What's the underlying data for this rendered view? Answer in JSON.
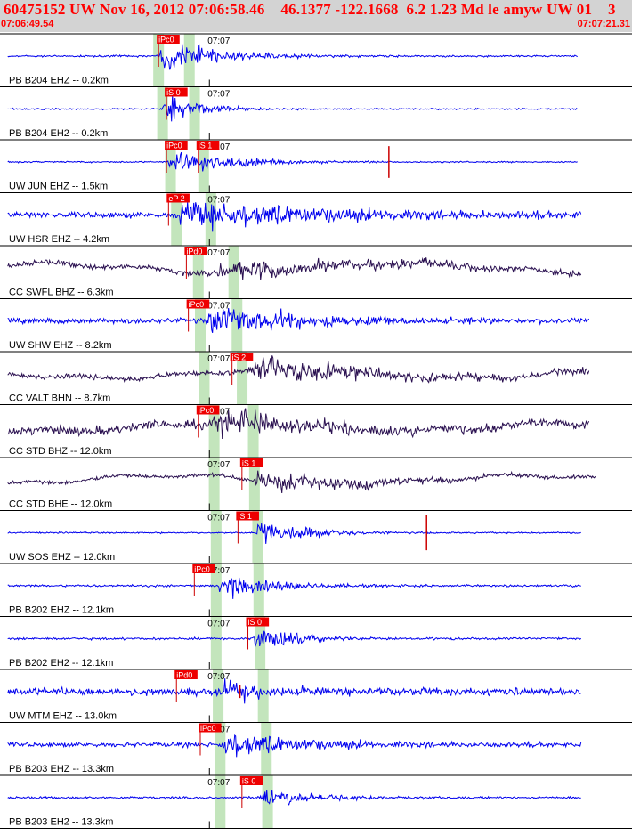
{
  "header": {
    "title": "60475152 UW Nov 16, 2012 07:06:58.46    46.1377 -122.1668  6.2 1.23 Md le amyw UW 01    3",
    "start_time": "07:06:49.54",
    "end_time": "07:07:21.31"
  },
  "colors": {
    "background": "#ffffff",
    "header_band": "#d3d3d3",
    "header_text": "#ff0000",
    "pick_box": "#ee0000",
    "pick_text": "#ffffff",
    "window_band": "#b8e0b0",
    "blue_trace": "#0000ee",
    "dark_trace": "#2a1050",
    "separator": "#000000",
    "minute_line": "#000000"
  },
  "chart_data": {
    "type": "seismogram",
    "time_start": "07:06:49.54",
    "time_end": "07:07:21.31",
    "minute_mark": "07:07",
    "minute_mark_time_s": 10.46,
    "traces": [
      {
        "label": "PB B204 EHZ -- 0.2km",
        "color": "blue",
        "picks": [
          {
            "label": "iPc0",
            "time_s": 7.9
          }
        ],
        "onset_s": 7.9,
        "amplitude": 0.55,
        "noise": 0.025,
        "decay_s": 3.5,
        "extent_s": 29.0,
        "window_s": 7.9,
        "coda_lines": []
      },
      {
        "label": "PB B204 EH2 -- 0.2km",
        "color": "blue",
        "picks": [
          {
            "label": "iS 0",
            "time_s": 8.3
          }
        ],
        "onset_s": 8.1,
        "amplitude": 0.55,
        "noise": 0.02,
        "decay_s": 2.0,
        "extent_s": 29.0,
        "window_s": 8.1,
        "coda_lines": []
      },
      {
        "label": "UW JUN EHZ -- 1.5km",
        "color": "blue",
        "picks": [
          {
            "label": "iPc0",
            "time_s": 8.3
          },
          {
            "label": "iS 1",
            "time_s": 9.9
          }
        ],
        "onset_s": 8.4,
        "amplitude": 0.6,
        "noise": 0.02,
        "decay_s": 3.0,
        "extent_s": 29.0,
        "window_s": 8.5,
        "coda_lines": [
          {
            "time_s": 19.5,
            "height": 0.5
          }
        ]
      },
      {
        "label": "UW HSR EHZ -- 4.2km",
        "color": "blue",
        "picks": [
          {
            "label": "eP 2",
            "time_s": 8.4
          }
        ],
        "onset_s": 8.8,
        "amplitude": 0.6,
        "noise": 0.08,
        "decay_s": 9.0,
        "extent_s": 29.2,
        "window_s": 8.8,
        "coda_lines": []
      },
      {
        "label": "CC SWFL BHZ -- 6.3km",
        "color": "dark",
        "picks": [
          {
            "label": "iPd0",
            "time_s": 9.3
          }
        ],
        "onset_s": 10.7,
        "amplitude": 0.35,
        "noise": 0.07,
        "decay_s": 12.0,
        "extent_s": 29.2,
        "window_s": 9.9,
        "coda_lines": []
      },
      {
        "label": "UW SHW EHZ -- 8.2km",
        "color": "blue",
        "picks": [
          {
            "label": "iPc0",
            "time_s": 9.4
          }
        ],
        "onset_s": 10.3,
        "amplitude": 0.6,
        "noise": 0.07,
        "decay_s": 6.0,
        "extent_s": 29.6,
        "window_s": 10.0,
        "coda_lines": []
      },
      {
        "label": "CC VALT BHN -- 8.7km",
        "color": "dark",
        "picks": [
          {
            "label": "iS 2",
            "time_s": 11.6
          }
        ],
        "onset_s": 12.4,
        "amplitude": 0.55,
        "noise": 0.07,
        "decay_s": 8.0,
        "extent_s": 29.6,
        "window_s": 10.2,
        "coda_lines": []
      },
      {
        "label": "CC STD BHZ -- 12.0km",
        "color": "dark",
        "picks": [
          {
            "label": "iPc0",
            "time_s": 9.9
          }
        ],
        "onset_s": 10.6,
        "amplitude": 0.5,
        "noise": 0.12,
        "decay_s": 6.0,
        "extent_s": 29.6,
        "window_s": 10.7,
        "coda_lines": []
      },
      {
        "label": "CC STD BHE -- 12.0km",
        "color": "dark",
        "picks": [
          {
            "label": "iS 1",
            "time_s": 12.1
          }
        ],
        "onset_s": 12.6,
        "amplitude": 0.45,
        "noise": 0.05,
        "decay_s": 6.0,
        "extent_s": 29.9,
        "window_s": 10.7,
        "coda_lines": []
      },
      {
        "label": "UW SOS EHZ -- 12.0km",
        "color": "blue",
        "picks": [
          {
            "label": "iS 1",
            "time_s": 11.9
          }
        ],
        "onset_s": 12.8,
        "amplitude": 0.55,
        "noise": 0.02,
        "decay_s": 2.5,
        "extent_s": 29.2,
        "window_s": 10.8,
        "coda_lines": [
          {
            "time_s": 21.4,
            "height": 0.55
          }
        ]
      },
      {
        "label": "PB B202 EHZ -- 12.1km",
        "color": "blue",
        "picks": [
          {
            "label": "iPc0",
            "time_s": 9.7
          }
        ],
        "onset_s": 10.9,
        "amplitude": 0.55,
        "noise": 0.03,
        "decay_s": 3.0,
        "extent_s": 29.2,
        "window_s": 10.8,
        "coda_lines": []
      },
      {
        "label": "PB B202 EH2 -- 12.1km",
        "color": "blue",
        "picks": [
          {
            "label": "iS 0",
            "time_s": 12.4
          }
        ],
        "onset_s": 12.6,
        "amplitude": 0.5,
        "noise": 0.03,
        "decay_s": 2.5,
        "extent_s": 29.2,
        "window_s": 10.8,
        "coda_lines": []
      },
      {
        "label": "UW MTM EHZ -- 13.0km",
        "color": "blue",
        "picks": [
          {
            "label": "iPd0",
            "time_s": 8.8
          }
        ],
        "onset_s": 11.0,
        "amplitude": 0.45,
        "noise": 0.1,
        "decay_s": 3.0,
        "extent_s": 29.2,
        "window_s": 10.9,
        "coda_lines": [
          {
            "time_s": 12.0,
            "height": 0.2
          }
        ]
      },
      {
        "label": "PB B203 EHZ -- 13.3km",
        "color": "blue",
        "picks": [
          {
            "label": "iPc0",
            "time_s": 10.0
          }
        ],
        "onset_s": 11.0,
        "amplitude": 0.5,
        "noise": 0.06,
        "decay_s": 5.0,
        "extent_s": 29.2,
        "window_s": 11.0,
        "coda_lines": []
      },
      {
        "label": "PB B203 EH2 -- 13.3km",
        "color": "blue",
        "picks": [
          {
            "label": "iS 0",
            "time_s": 12.1
          }
        ],
        "onset_s": 12.9,
        "amplitude": 0.4,
        "noise": 0.03,
        "decay_s": 3.0,
        "extent_s": 29.2,
        "window_s": 11.0,
        "coda_lines": []
      }
    ]
  }
}
